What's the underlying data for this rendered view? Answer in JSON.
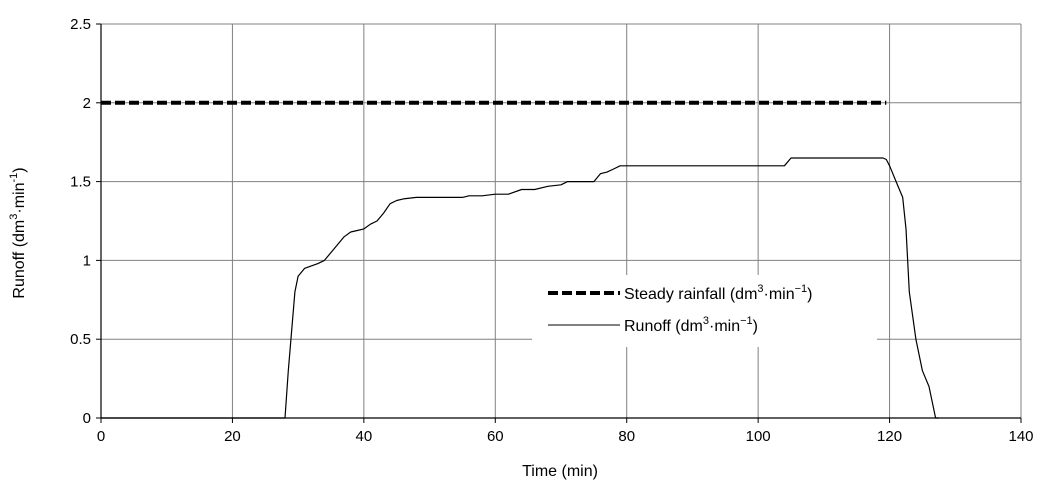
{
  "chart_data": {
    "type": "line",
    "xlabel": "Time (min)",
    "ylabel": {
      "pre": "Runoff (dm",
      "sup1": "3",
      "mid": "·min",
      "sup2": "-1",
      "post": ")"
    },
    "xlim": [
      0,
      140
    ],
    "ylim": [
      0,
      2.5
    ],
    "xticks": [
      "0",
      "20",
      "40",
      "60",
      "80",
      "100",
      "120",
      "140"
    ],
    "yticks": [
      "0",
      "0.5",
      "1",
      "1.5",
      "2",
      "2.5"
    ],
    "grid": true,
    "legend_position": "center-right",
    "series": [
      {
        "name": {
          "pre": "Steady rainfall (dm",
          "sup1": "3",
          "mid": "·min",
          "sup2": "−1",
          "post": ")"
        },
        "style": "dashed-bold",
        "color": "#000000",
        "x": [
          0,
          119.5
        ],
        "y": [
          2,
          2
        ]
      },
      {
        "name": {
          "pre": "Runoff (dm",
          "sup1": "3",
          "mid": "·min",
          "sup2": "−1",
          "post": ")"
        },
        "style": "solid-thin",
        "color": "#000000",
        "x": [
          0,
          28,
          28.5,
          29.5,
          30,
          31,
          33,
          34,
          35,
          37,
          38,
          39,
          40,
          41,
          42,
          43,
          44,
          45,
          46,
          48,
          50,
          55,
          56,
          58,
          60,
          62,
          64,
          66,
          68,
          70,
          71,
          72,
          75,
          76,
          77,
          78,
          79,
          80,
          85,
          90,
          95,
          100,
          104,
          105,
          106,
          110,
          115,
          118,
          119,
          119.5,
          120,
          121,
          122,
          122.5,
          123,
          124,
          125,
          126,
          126.5,
          127,
          127.5
        ],
        "y": [
          0,
          0,
          0.3,
          0.8,
          0.9,
          0.95,
          0.98,
          1.0,
          1.05,
          1.15,
          1.18,
          1.19,
          1.2,
          1.23,
          1.25,
          1.3,
          1.36,
          1.38,
          1.39,
          1.4,
          1.4,
          1.4,
          1.41,
          1.41,
          1.42,
          1.42,
          1.45,
          1.45,
          1.47,
          1.48,
          1.5,
          1.5,
          1.5,
          1.55,
          1.56,
          1.58,
          1.6,
          1.6,
          1.6,
          1.6,
          1.6,
          1.6,
          1.6,
          1.65,
          1.65,
          1.65,
          1.65,
          1.65,
          1.65,
          1.64,
          1.6,
          1.5,
          1.4,
          1.2,
          0.8,
          0.5,
          0.3,
          0.2,
          0.1,
          0.0,
          0.0
        ]
      }
    ]
  }
}
